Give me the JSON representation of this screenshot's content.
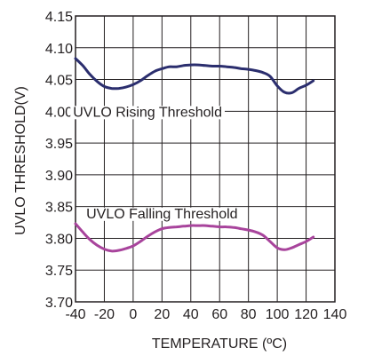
{
  "chart_data": {
    "type": "line",
    "xlabel": "TEMPERATURE (ºC)",
    "ylabel": "UVLO THRESHOLD(V)",
    "xlim": [
      -40,
      140
    ],
    "ylim": [
      3.7,
      4.15
    ],
    "x_ticks": [
      "-40",
      "-20",
      "0",
      "20",
      "40",
      "60",
      "80",
      "100",
      "120",
      "140"
    ],
    "y_ticks": [
      "4.15",
      "4.10",
      "4.05",
      "4.00",
      "3.95",
      "3.90",
      "3.85",
      "3.80",
      "3.75",
      "3.70"
    ],
    "x_tick_values": [
      -40,
      -20,
      0,
      20,
      40,
      60,
      80,
      100,
      120,
      140
    ],
    "y_tick_values": [
      4.15,
      4.1,
      4.05,
      4.0,
      3.95,
      3.9,
      3.85,
      3.8,
      3.75,
      3.7
    ],
    "grid": true,
    "legend": "none",
    "series": [
      {
        "name": "UVLO Rising Threshold",
        "color": "#2b2e6e",
        "label_at": [
          10,
          4.0
        ],
        "x": [
          -40,
          -35,
          -30,
          -25,
          -20,
          -15,
          -10,
          -5,
          0,
          5,
          10,
          15,
          20,
          25,
          30,
          35,
          40,
          45,
          50,
          55,
          60,
          65,
          70,
          75,
          80,
          85,
          90,
          95,
          100,
          105,
          110,
          115,
          120,
          125
        ],
        "y": [
          4.083,
          4.072,
          4.058,
          4.047,
          4.039,
          4.036,
          4.036,
          4.038,
          4.042,
          4.048,
          4.056,
          4.063,
          4.067,
          4.07,
          4.07,
          4.072,
          4.073,
          4.073,
          4.072,
          4.071,
          4.071,
          4.07,
          4.069,
          4.067,
          4.066,
          4.064,
          4.061,
          4.055,
          4.04,
          4.03,
          4.029,
          4.036,
          4.041,
          4.048
        ]
      },
      {
        "name": "UVLO Falling Threshold",
        "color": "#a8449c",
        "label_at": [
          20,
          3.84
        ],
        "x": [
          -40,
          -35,
          -30,
          -25,
          -20,
          -15,
          -10,
          -5,
          0,
          5,
          10,
          15,
          20,
          25,
          30,
          35,
          40,
          45,
          50,
          55,
          60,
          65,
          70,
          75,
          80,
          85,
          90,
          95,
          100,
          105,
          110,
          115,
          120,
          125
        ],
        "y": [
          3.823,
          3.81,
          3.798,
          3.789,
          3.783,
          3.78,
          3.781,
          3.784,
          3.788,
          3.795,
          3.803,
          3.81,
          3.815,
          3.817,
          3.818,
          3.819,
          3.82,
          3.82,
          3.82,
          3.819,
          3.818,
          3.818,
          3.817,
          3.815,
          3.813,
          3.81,
          3.805,
          3.795,
          3.785,
          3.782,
          3.785,
          3.79,
          3.795,
          3.802
        ]
      }
    ]
  }
}
